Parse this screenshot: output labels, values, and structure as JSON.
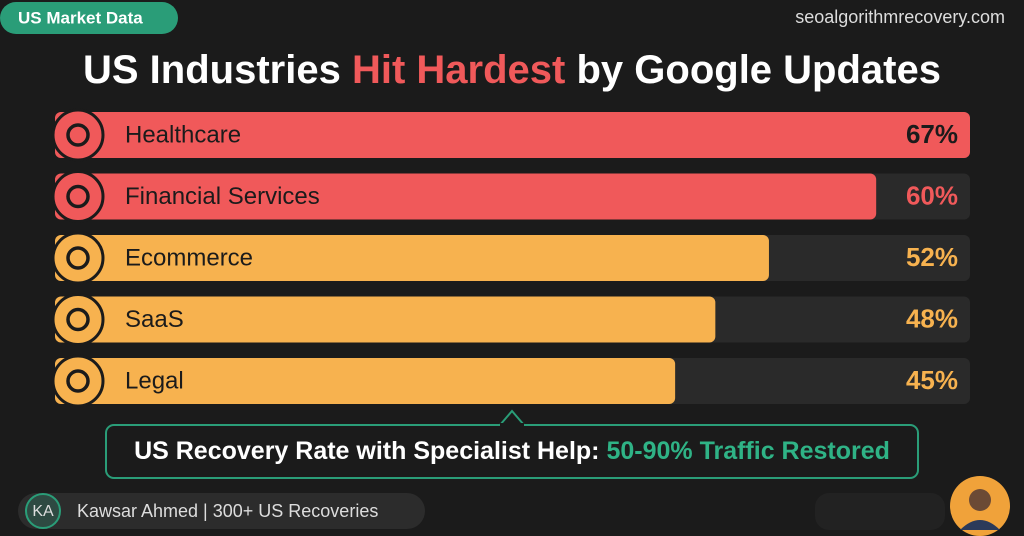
{
  "badge": "US Market Data",
  "site": "seoalgorithmrecovery.com",
  "chart_data": {
    "type": "bar",
    "orientation": "horizontal",
    "title_parts": [
      "US Industries",
      "Hit Hardest",
      "by Google Updates"
    ],
    "title_colors": [
      "#ffffff",
      "#f0595a",
      "#ffffff"
    ],
    "categories": [
      "Healthcare",
      "Financial Services",
      "Ecommerce",
      "SaaS",
      "Legal"
    ],
    "values": [
      67,
      60,
      52,
      48,
      45
    ],
    "value_labels": [
      "67%",
      "60%",
      "52%",
      "48%",
      "45%"
    ],
    "colors": [
      "#f0595a",
      "#f0595a",
      "#f7b24f",
      "#f7b24f",
      "#f7b24f"
    ],
    "value_label_colors": [
      "#1b1b1b",
      "#f0595a",
      "#f7b24f",
      "#f7b24f",
      "#f7b24f"
    ]
  },
  "callout": {
    "text": "US Recovery Rate with Specialist Help:",
    "highlight": "50-90% Traffic Restored"
  },
  "footer": {
    "initials": "KA",
    "text": "Kawsar Ahmed | 300+ US Recoveries"
  }
}
